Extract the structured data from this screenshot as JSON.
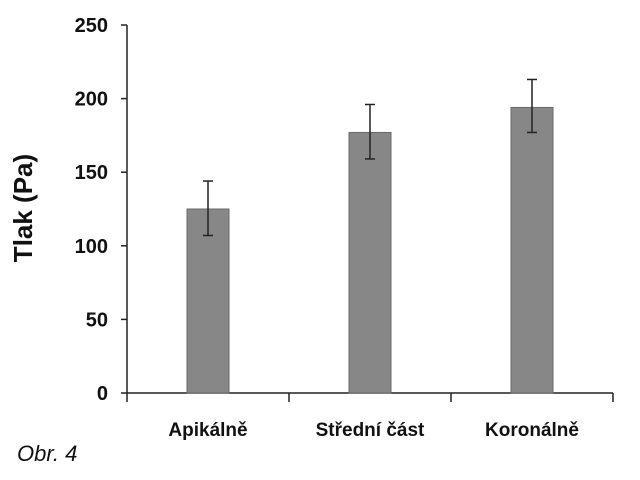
{
  "chart_data": {
    "type": "bar",
    "categories": [
      "Apikálně",
      "Střední část",
      "Koronálně"
    ],
    "series": [
      {
        "name": "Tlak",
        "values": [
          125,
          177,
          194
        ],
        "error_low": [
          107,
          159,
          177
        ],
        "error_high": [
          144,
          196,
          213
        ]
      }
    ],
    "title": "",
    "xlabel": "",
    "ylabel": "Tlak (Pa)",
    "ylim": [
      0,
      250
    ],
    "yticks": [
      0,
      50,
      100,
      150,
      200,
      250
    ],
    "grid": false,
    "bar_color": "#878787"
  },
  "caption": "Obr. 4"
}
